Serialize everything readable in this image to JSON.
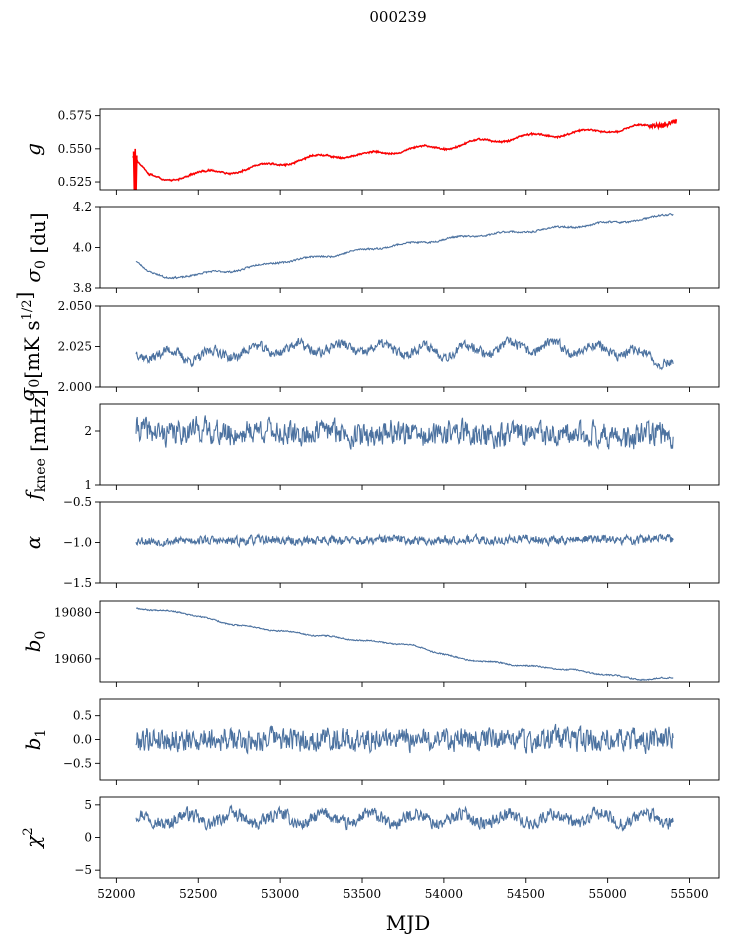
{
  "figure": {
    "title": "000239",
    "xlabel": "MJD",
    "series_color": "#4c72a0",
    "fit_color": "#ff0000"
  },
  "chart_data": [
    {
      "type": "line",
      "id": "g",
      "ylabel": "g",
      "ylabel_sub": "",
      "ylabel_sup": "",
      "ylabel_unit": "",
      "xlim": [
        51900,
        55680
      ],
      "ylim": [
        0.519,
        0.58
      ],
      "yticks": [
        0.525,
        0.55,
        0.575
      ],
      "ytick_labels": [
        "0.525",
        "0.550",
        "0.575"
      ],
      "x_start": 52100,
      "x_end": 55420,
      "trend": [
        [
          52100,
          0.546
        ],
        [
          52130,
          0.541
        ],
        [
          52200,
          0.529
        ],
        [
          52280,
          0.526
        ],
        [
          52450,
          0.531
        ],
        [
          52700,
          0.533
        ],
        [
          53000,
          0.539
        ],
        [
          53300,
          0.545
        ],
        [
          53500,
          0.545
        ],
        [
          53800,
          0.55
        ],
        [
          54000,
          0.551
        ],
        [
          54200,
          0.555
        ],
        [
          54500,
          0.559
        ],
        [
          54800,
          0.562
        ],
        [
          55100,
          0.565
        ],
        [
          55250,
          0.567
        ],
        [
          55420,
          0.572
        ]
      ],
      "wiggle": 0.0018,
      "wiggle_period": 330,
      "noise": 0.0004,
      "fit_overlay": true,
      "seed": 11
    },
    {
      "type": "line",
      "id": "sigma0-du",
      "ylabel": "σ",
      "ylabel_sub": "0",
      "ylabel_sup": "",
      "ylabel_unit": " [du]",
      "xlim": [
        51900,
        55680
      ],
      "ylim": [
        3.8,
        4.2
      ],
      "yticks": [
        3.8,
        4.0,
        4.2
      ],
      "ytick_labels": [
        "3.8",
        "4.0",
        "4.2"
      ],
      "x_start": 52120,
      "x_end": 55400,
      "trend": [
        [
          52120,
          3.94
        ],
        [
          52200,
          3.88
        ],
        [
          52300,
          3.845
        ],
        [
          52450,
          3.865
        ],
        [
          52700,
          3.885
        ],
        [
          53000,
          3.93
        ],
        [
          53300,
          3.96
        ],
        [
          53600,
          4.0
        ],
        [
          53900,
          4.03
        ],
        [
          54200,
          4.06
        ],
        [
          54500,
          4.08
        ],
        [
          54800,
          4.105
        ],
        [
          55100,
          4.13
        ],
        [
          55250,
          4.14
        ],
        [
          55400,
          4.17
        ]
      ],
      "wiggle": 0.006,
      "wiggle_period": 300,
      "noise": 0.004,
      "fit_overlay": false,
      "seed": 23
    },
    {
      "type": "line",
      "id": "sigma0-mk",
      "ylabel": "σ",
      "ylabel_sub": "0",
      "ylabel_sup": "1/2",
      "ylabel_unit": "[mK s",
      "ylabel_unit_end": "]",
      "xlim": [
        51900,
        55680
      ],
      "ylim": [
        2.0,
        2.05
      ],
      "yticks": [
        2.0,
        2.025,
        2.05
      ],
      "ytick_labels": [
        "2.000",
        "2.025",
        "2.050"
      ],
      "x_start": 52120,
      "x_end": 55400,
      "trend": [
        [
          52120,
          2.021
        ],
        [
          52500,
          2.019
        ],
        [
          53000,
          2.024
        ],
        [
          53500,
          2.024
        ],
        [
          54000,
          2.022
        ],
        [
          54500,
          2.025
        ],
        [
          55000,
          2.023
        ],
        [
          55250,
          2.019
        ],
        [
          55400,
          2.015
        ]
      ],
      "wiggle": 0.003,
      "wiggle_period": 260,
      "noise": 0.0028,
      "fit_overlay": false,
      "seed": 37
    },
    {
      "type": "line",
      "id": "fknee",
      "ylabel": "f",
      "ylabel_sub": "knee",
      "ylabel_sup": "",
      "ylabel_unit": " [mHz]",
      "xlim": [
        51900,
        55680
      ],
      "ylim": [
        1.0,
        2.5
      ],
      "yticks": [
        1,
        2
      ],
      "ytick_labels": [
        "1",
        "2"
      ],
      "x_start": 52120,
      "x_end": 55400,
      "trend": [
        [
          52120,
          2.0
        ],
        [
          55400,
          1.9
        ]
      ],
      "wiggle": 0.05,
      "wiggle_period": 400,
      "noise": 0.2,
      "fit_overlay": false,
      "seed": 41
    },
    {
      "type": "line",
      "id": "alpha",
      "ylabel": "α",
      "ylabel_sub": "",
      "ylabel_sup": "",
      "ylabel_unit": "",
      "xlim": [
        51900,
        55680
      ],
      "ylim": [
        -1.5,
        -0.5
      ],
      "yticks": [
        -1.5,
        -1.0,
        -0.5
      ],
      "ytick_labels": [
        "−1.5",
        "−1.0",
        "−0.5"
      ],
      "x_start": 52120,
      "x_end": 55400,
      "trend": [
        [
          52120,
          -0.98
        ],
        [
          55400,
          -0.96
        ]
      ],
      "wiggle": 0.01,
      "wiggle_period": 400,
      "noise": 0.05,
      "fit_overlay": false,
      "seed": 53
    },
    {
      "type": "line",
      "id": "b0",
      "ylabel": "b",
      "ylabel_sub": "0",
      "ylabel_sup": "",
      "ylabel_unit": "",
      "xlim": [
        51900,
        55680
      ],
      "ylim": [
        19050,
        19085
      ],
      "yticks": [
        19060,
        19080
      ],
      "ytick_labels": [
        "19060",
        "19080"
      ],
      "x_start": 52120,
      "x_end": 55400,
      "trend": [
        [
          52120,
          19082
        ],
        [
          52400,
          19080
        ],
        [
          52700,
          19075
        ],
        [
          53000,
          19072
        ],
        [
          53500,
          19068
        ],
        [
          53800,
          19066
        ],
        [
          54100,
          19060
        ],
        [
          54500,
          19057
        ],
        [
          54800,
          19055
        ],
        [
          55100,
          19052
        ],
        [
          55250,
          19051
        ],
        [
          55400,
          19052
        ]
      ],
      "wiggle": 0.3,
      "wiggle_period": 250,
      "noise": 0.25,
      "fit_overlay": false,
      "seed": 67
    },
    {
      "type": "line",
      "id": "b1",
      "ylabel": "b",
      "ylabel_sub": "1",
      "ylabel_sup": "",
      "ylabel_unit": "",
      "xlim": [
        51900,
        55680
      ],
      "ylim": [
        -0.85,
        0.85
      ],
      "yticks": [
        -0.5,
        0.0,
        0.5
      ],
      "ytick_labels": [
        "−0.5",
        "0.0",
        "0.5"
      ],
      "x_start": 52120,
      "x_end": 55400,
      "trend": [
        [
          52120,
          0.0
        ],
        [
          55400,
          0.0
        ]
      ],
      "wiggle": 0.03,
      "wiggle_period": 350,
      "noise": 0.22,
      "fit_overlay": false,
      "seed": 79
    },
    {
      "type": "line",
      "id": "chi2",
      "ylabel": "χ",
      "ylabel_sub": "",
      "ylabel_sup": "2",
      "ylabel_unit": "",
      "xlim": [
        51900,
        55680
      ],
      "ylim": [
        -6.2,
        6.2
      ],
      "yticks": [
        -5,
        0,
        5
      ],
      "ytick_labels": [
        "−5",
        "0",
        "5"
      ],
      "x_start": 52120,
      "x_end": 55400,
      "trend": [
        [
          52120,
          2.8
        ],
        [
          55400,
          2.9
        ]
      ],
      "wiggle": 0.8,
      "wiggle_period": 280,
      "noise": 0.9,
      "fit_overlay": false,
      "seed": 97
    }
  ],
  "xaxis": {
    "ticks": [
      52000,
      52500,
      53000,
      53500,
      54000,
      54500,
      55000,
      55500
    ],
    "tick_labels": [
      "52000",
      "52500",
      "53000",
      "53500",
      "54000",
      "54500",
      "55000",
      "55500"
    ]
  }
}
